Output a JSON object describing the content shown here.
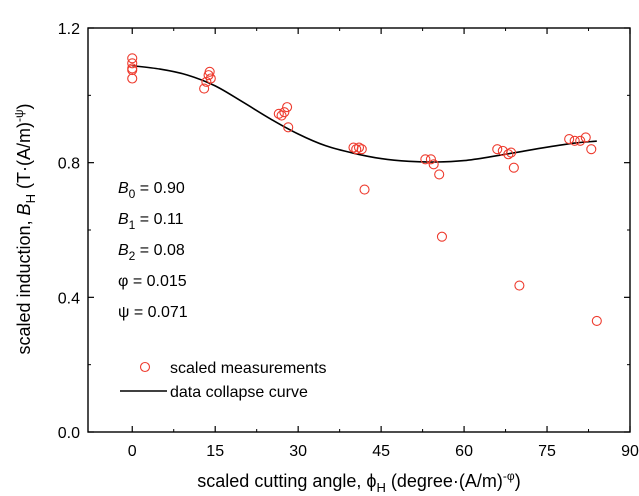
{
  "colors": {
    "measurement": "#ee3b2e",
    "curve": "#000000",
    "axis": "#000000"
  },
  "chart_data": {
    "type": "scatter",
    "xlabel": "scaled cutting angle, ϕH (degree·(A/m)^-φ)",
    "ylabel": "scaled induction, BH (T·(A/m)^-ψ)",
    "xlim": [
      -8,
      90
    ],
    "ylim": [
      0,
      1.2
    ],
    "xticks": [
      "0",
      "15",
      "30",
      "45",
      "60",
      "75",
      "90"
    ],
    "yticks": [
      "0.0",
      "0.4",
      "0.8",
      "1.2"
    ],
    "parameters": [
      {
        "sym": "B",
        "sub": "0",
        "rest": " = 0.90"
      },
      {
        "sym": "B",
        "sub": "1",
        "rest": " = 0.11"
      },
      {
        "sym": "B",
        "sub": "2",
        "rest": " = 0.08"
      },
      {
        "sym": "φ",
        "sub": "",
        "rest": " = 0.015"
      },
      {
        "sym": "ψ",
        "sub": "",
        "rest": " = 0.071"
      }
    ],
    "legend": {
      "placement": "lower-left",
      "entries": [
        "scaled measurements",
        "data collapse curve"
      ]
    },
    "series": [
      {
        "name": "scaled measurements",
        "kind": "scatter",
        "points": [
          [
            0,
            1.11
          ],
          [
            0,
            1.095
          ],
          [
            0,
            1.08
          ],
          [
            0,
            1.075
          ],
          [
            0,
            1.05
          ],
          [
            13,
            1.02
          ],
          [
            13.4,
            1.04
          ],
          [
            13.8,
            1.06
          ],
          [
            14,
            1.07
          ],
          [
            14.2,
            1.05
          ],
          [
            26.5,
            0.945
          ],
          [
            27,
            0.94
          ],
          [
            27.5,
            0.95
          ],
          [
            28,
            0.965
          ],
          [
            28.2,
            0.905
          ],
          [
            40,
            0.845
          ],
          [
            40.5,
            0.84
          ],
          [
            41,
            0.845
          ],
          [
            41.5,
            0.84
          ],
          [
            42,
            0.72
          ],
          [
            53,
            0.81
          ],
          [
            54,
            0.81
          ],
          [
            54.5,
            0.795
          ],
          [
            55.5,
            0.765
          ],
          [
            56,
            0.58
          ],
          [
            66,
            0.84
          ],
          [
            67,
            0.835
          ],
          [
            68,
            0.825
          ],
          [
            68.5,
            0.83
          ],
          [
            69,
            0.785
          ],
          [
            70,
            0.435
          ],
          [
            79,
            0.87
          ],
          [
            80,
            0.865
          ],
          [
            81,
            0.865
          ],
          [
            82,
            0.875
          ],
          [
            83,
            0.84
          ],
          [
            84,
            0.33
          ]
        ]
      },
      {
        "name": "data collapse curve",
        "kind": "line",
        "points": [
          [
            0,
            1.088
          ],
          [
            5,
            1.078
          ],
          [
            10,
            1.06
          ],
          [
            15,
            1.028
          ],
          [
            20,
            0.98
          ],
          [
            25,
            0.93
          ],
          [
            30,
            0.885
          ],
          [
            35,
            0.85
          ],
          [
            40,
            0.828
          ],
          [
            45,
            0.812
          ],
          [
            50,
            0.804
          ],
          [
            55,
            0.802
          ],
          [
            60,
            0.806
          ],
          [
            65,
            0.818
          ],
          [
            70,
            0.832
          ],
          [
            75,
            0.846
          ],
          [
            80,
            0.858
          ],
          [
            84,
            0.864
          ]
        ]
      }
    ]
  }
}
